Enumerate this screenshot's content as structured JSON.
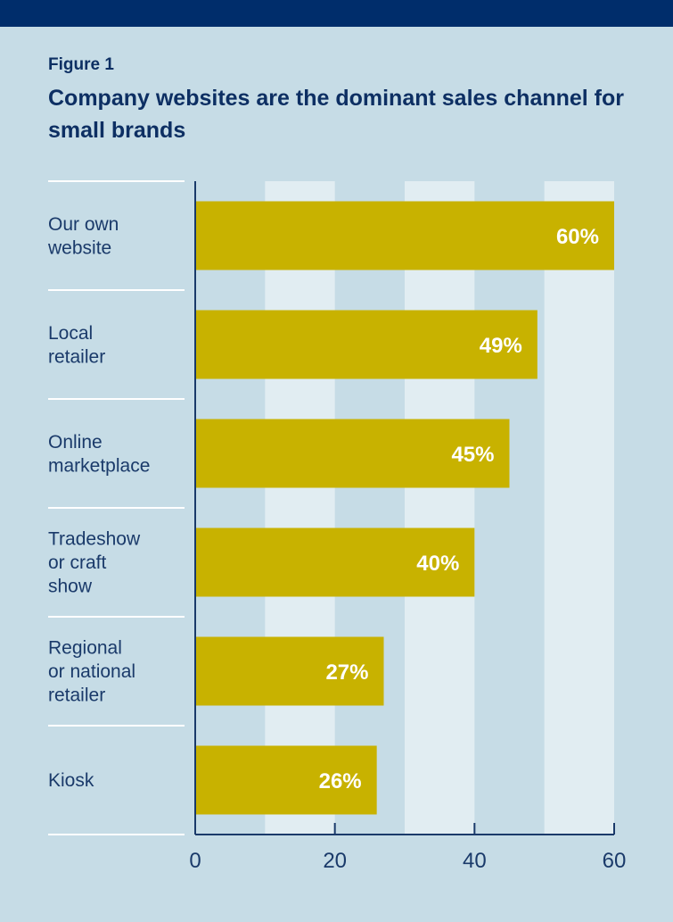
{
  "header": {
    "figure_label": "Figure 1",
    "title": "Company websites are the dominant sales channel for small brands"
  },
  "colors": {
    "background": "#c6dce6",
    "top_bar": "#002d6b",
    "stripe": "#e1edf2",
    "bar": "#c8b200",
    "axis": "#1a3a6a",
    "separator": "#ffffff",
    "value_text": "#ffffff"
  },
  "chart_data": {
    "type": "bar",
    "orientation": "horizontal",
    "title": "Company websites are the dominant sales channel for small brands",
    "subtitle": "Figure 1",
    "categories": [
      [
        "Our own",
        "website"
      ],
      [
        "Local",
        "retailer"
      ],
      [
        "Online",
        "marketplace"
      ],
      [
        "Tradeshow",
        "or craft",
        "show"
      ],
      [
        "Regional",
        "or national",
        "retailer"
      ],
      [
        "Kiosk"
      ]
    ],
    "values": [
      60,
      49,
      45,
      40,
      27,
      26
    ],
    "data_labels": [
      "60%",
      "49%",
      "45%",
      "40%",
      "27%",
      "26%"
    ],
    "xlabel": "",
    "ylabel": "",
    "xlim": [
      0,
      60
    ],
    "xticks": [
      0,
      20,
      40,
      60
    ],
    "xtick_labels": [
      "0",
      "20",
      "40",
      "60"
    ],
    "grid": "alternating vertical bands every 10 units",
    "legend": "none"
  }
}
